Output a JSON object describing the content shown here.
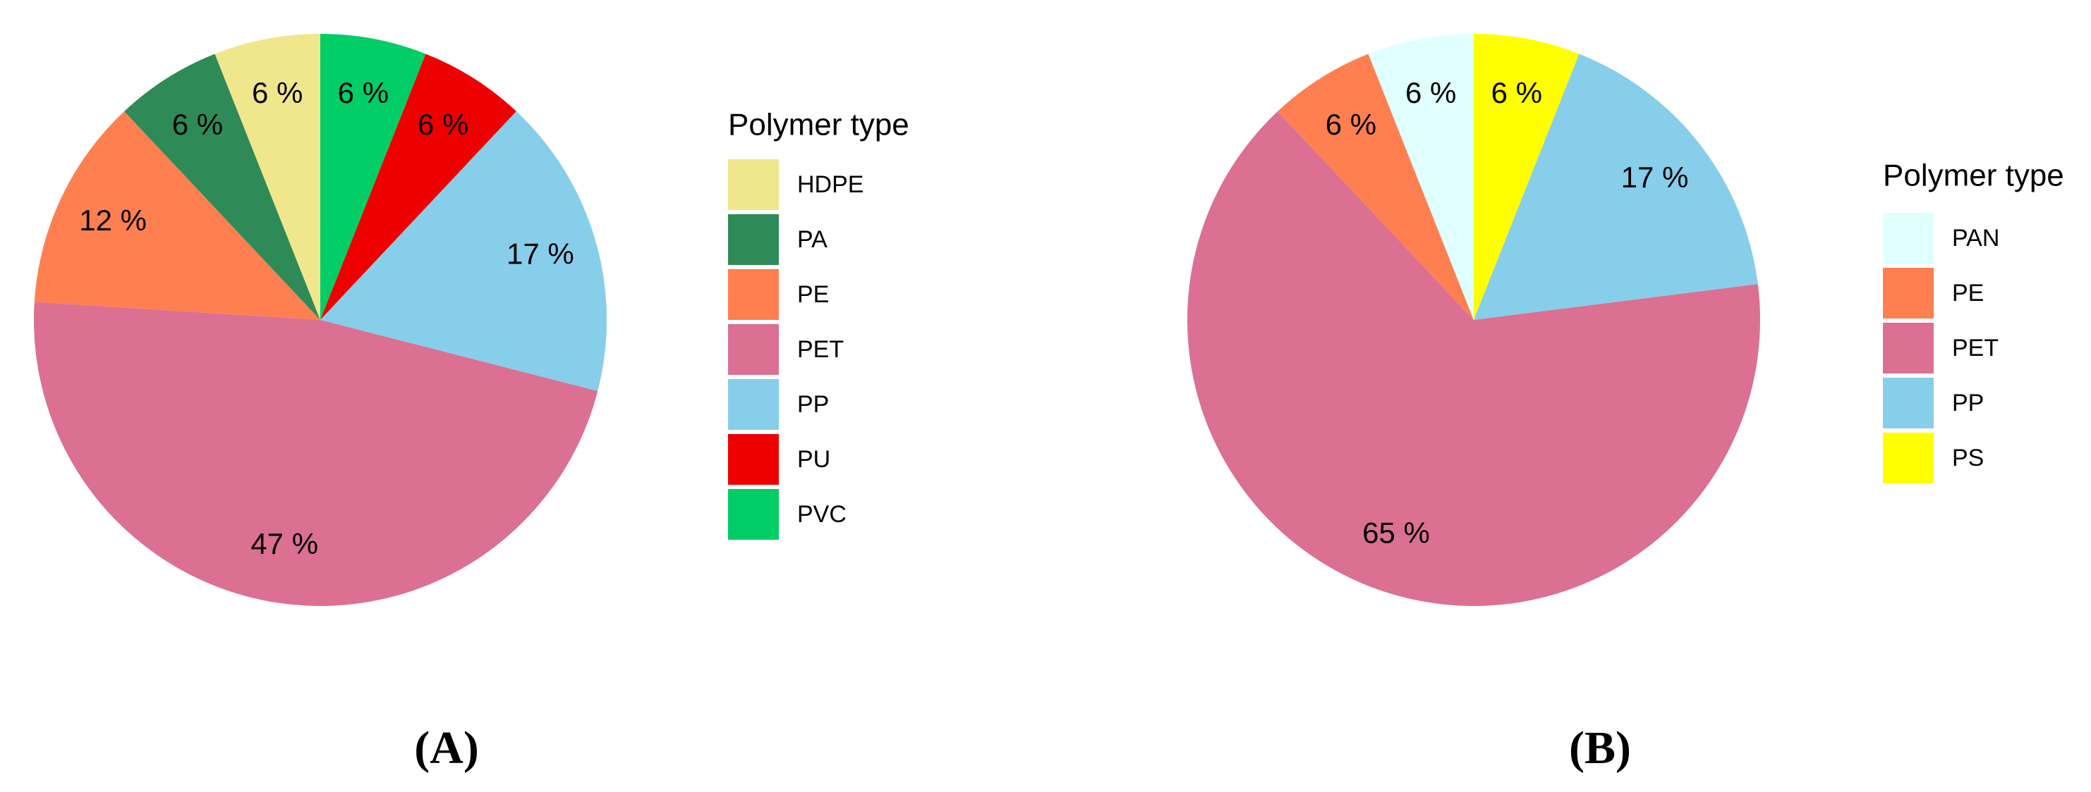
{
  "chart_data": [
    {
      "type": "pie",
      "panel_label": "(A)",
      "legend_title": "Polymer type",
      "categories": [
        "HDPE",
        "PA",
        "PE",
        "PET",
        "PP",
        "PU",
        "PVC"
      ],
      "values": [
        6,
        6,
        12,
        47,
        17,
        6,
        6
      ],
      "value_labels": [
        "6 %",
        "6 %",
        "12 %",
        "47 %",
        "17 %",
        "6 %",
        "6 %"
      ],
      "colors": [
        "#f0e68c",
        "#2e8b57",
        "#ff7f50",
        "#db7093",
        "#87ceeb",
        "#ee0000",
        "#00cd66"
      ]
    },
    {
      "type": "pie",
      "panel_label": "(B)",
      "legend_title": "Polymer type",
      "categories": [
        "PAN",
        "PE",
        "PET",
        "PP",
        "PS"
      ],
      "values": [
        6,
        6,
        65,
        17,
        6
      ],
      "value_labels": [
        "6 %",
        "6 %",
        "65 %",
        "17 %",
        "6 %"
      ],
      "colors": [
        "#e0ffff",
        "#ff7f50",
        "#db7093",
        "#87ceeb",
        "#ffff00"
      ]
    }
  ]
}
